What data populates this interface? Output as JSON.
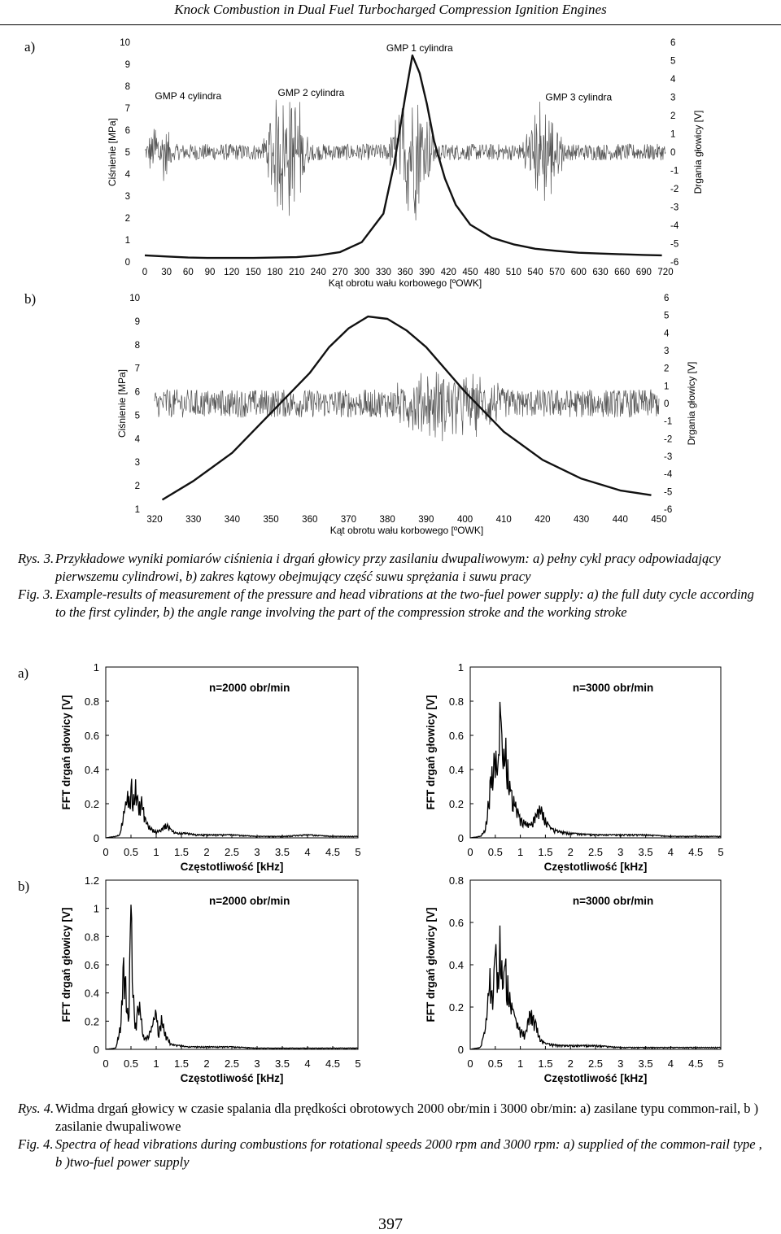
{
  "header": "Knock Combustion in Dual Fuel Turbocharged Compression Ignition Engines",
  "panel_labels": {
    "a": "a)",
    "b": "b)"
  },
  "fig3": {
    "caption_pl_label": "Rys. 3.",
    "caption_pl": "Przykładowe wyniki pomiarów ciśnienia i drgań głowicy przy zasilaniu dwupaliwowym: a) pełny cykl pracy odpowiadający pierwszemu cylindrowi, b) zakres kątowy obejmujący część suwu sprężania i suwu pracy",
    "caption_en_label": "Fig. 3.",
    "caption_en": "Example-results of measurement of the pressure and head vibrations at the two-fuel power supply: a) the full duty cycle according to the first cylinder, b) the angle range involving the part of the compression stroke and the working stroke"
  },
  "fig4": {
    "caption_pl_label": "Rys. 4.",
    "caption_pl": "Widma drgań głowicy w czasie spalania dla prędkości obrotowych 2000 obr/min i 3000 obr/min: a) zasilane typu common-rail, b ) zasilanie dwupaliwowe",
    "caption_en_label": "Fig. 4.",
    "caption_en": "Spectra of head vibrations during combustions for rotational speeds 2000 rpm and 3000 rpm: a) supplied of the common-rail type , b )two-fuel power supply"
  },
  "page_number": "397",
  "chart_data": [
    {
      "id": "fig3a",
      "type": "line",
      "xlabel": "Kąt obrotu wału korbowego [ºOWK]",
      "ylabel": "Ciśnienie [MPa]",
      "y2label": "Drgania głowicy [V]",
      "xlim": [
        0,
        720
      ],
      "ylim": [
        0,
        10
      ],
      "y2lim": [
        -6,
        6
      ],
      "x_ticks": [
        0,
        30,
        60,
        90,
        120,
        150,
        180,
        210,
        240,
        270,
        300,
        330,
        360,
        390,
        420,
        450,
        480,
        510,
        540,
        570,
        600,
        630,
        660,
        690,
        720
      ],
      "y_ticks": [
        0,
        1,
        2,
        3,
        4,
        5,
        6,
        7,
        8,
        9,
        10
      ],
      "y2_ticks": [
        6,
        5,
        4,
        3,
        2,
        1,
        0,
        -1,
        -2,
        -3,
        -4,
        -5,
        -6
      ],
      "annotations": [
        {
          "text": "GMP 1 cylindra",
          "x": 380,
          "y": 9.6
        },
        {
          "text": "GMP 4 cylindra",
          "x": 60,
          "y": 7.4
        },
        {
          "text": "GMP 2 cylindra",
          "x": 230,
          "y": 7.55
        },
        {
          "text": "GMP 3 cylindra",
          "x": 600,
          "y": 7.35
        }
      ],
      "series": [
        {
          "role": "pressure",
          "x": [
            0,
            30,
            60,
            90,
            120,
            150,
            180,
            210,
            240,
            270,
            300,
            330,
            345,
            360,
            370,
            380,
            390,
            400,
            415,
            430,
            450,
            480,
            510,
            540,
            570,
            600,
            630,
            660,
            690,
            715
          ],
          "values": [
            0.3,
            0.25,
            0.2,
            0.18,
            0.18,
            0.18,
            0.2,
            0.22,
            0.3,
            0.45,
            0.9,
            2.2,
            4.5,
            7.5,
            9.4,
            8.6,
            7.2,
            5.5,
            3.8,
            2.6,
            1.7,
            1.1,
            0.8,
            0.6,
            0.5,
            0.42,
            0.38,
            0.35,
            0.32,
            0.3
          ]
        },
        {
          "role": "vibration",
          "bursts": [
            {
              "center": 20,
              "width": 40,
              "amp": 2.2
            },
            {
              "center": 195,
              "width": 70,
              "amp": 4.5
            },
            {
              "center": 370,
              "width": 70,
              "amp": 4.2
            },
            {
              "center": 550,
              "width": 70,
              "amp": 3.2
            }
          ],
          "baseline_amp": 0.45
        }
      ]
    },
    {
      "id": "fig3b",
      "type": "line",
      "xlabel": "Kąt obrotu wału korbowego [ºOWK]",
      "ylabel": "Ciśnienie [MPa]",
      "y2label": "Drgania głowicy [V]",
      "xlim": [
        320,
        450
      ],
      "ylim": [
        1,
        10
      ],
      "y2lim": [
        -6,
        6
      ],
      "x_ticks": [
        320,
        330,
        340,
        350,
        360,
        370,
        380,
        390,
        400,
        410,
        420,
        430,
        440,
        450
      ],
      "y_ticks": [
        1,
        2,
        3,
        4,
        5,
        6,
        7,
        8,
        9,
        10
      ],
      "y2_ticks": [
        6,
        5,
        4,
        3,
        2,
        1,
        0,
        -1,
        -2,
        -3,
        -4,
        -5,
        -6
      ],
      "series": [
        {
          "role": "pressure",
          "x": [
            322,
            330,
            340,
            350,
            360,
            365,
            370,
            375,
            380,
            385,
            390,
            400,
            410,
            420,
            430,
            440,
            448
          ],
          "values": [
            1.4,
            2.2,
            3.4,
            5.1,
            6.8,
            7.9,
            8.7,
            9.2,
            9.1,
            8.6,
            7.9,
            6.0,
            4.3,
            3.1,
            2.3,
            1.8,
            1.6
          ]
        },
        {
          "role": "vibration",
          "bursts": [
            {
              "center": 330,
              "width": 15,
              "amp": 1.0
            },
            {
              "center": 395,
              "width": 40,
              "amp": 2.3
            }
          ],
          "baseline_amp": 0.8
        }
      ]
    },
    {
      "id": "fig4a-2000",
      "type": "line",
      "annotation": "n=2000 obr/min",
      "xlabel": "Częstotliwość [kHz]",
      "ylabel": "FFT drgań głowicy [V]",
      "xlim": [
        0,
        5
      ],
      "ylim": [
        0,
        1
      ],
      "x_ticks": [
        0,
        0.5,
        1,
        1.5,
        2,
        2.5,
        3,
        3.5,
        4,
        4.5,
        5
      ],
      "y_ticks": [
        0,
        0.2,
        0.4,
        0.6,
        0.8,
        1
      ],
      "series": [
        {
          "x": [
            0,
            0.2,
            0.28,
            0.35,
            0.4,
            0.45,
            0.48,
            0.5,
            0.55,
            0.6,
            0.65,
            0.7,
            0.8,
            0.9,
            1.0,
            1.1,
            1.2,
            1.25,
            1.3,
            1.4,
            1.6,
            1.8,
            2.0,
            2.5,
            3.0,
            3.5,
            4.0,
            4.5,
            4.95
          ],
          "values": [
            0.0,
            0.01,
            0.02,
            0.15,
            0.22,
            0.3,
            0.15,
            0.38,
            0.25,
            0.36,
            0.18,
            0.26,
            0.1,
            0.06,
            0.04,
            0.05,
            0.09,
            0.07,
            0.05,
            0.03,
            0.03,
            0.02,
            0.02,
            0.02,
            0.01,
            0.01,
            0.02,
            0.01,
            0.01
          ]
        }
      ]
    },
    {
      "id": "fig4a-3000",
      "type": "line",
      "annotation": "n=3000 obr/min",
      "xlabel": "Częstotliwość [kHz]",
      "ylabel": "FFT drgań głowicy [V]",
      "xlim": [
        0,
        5
      ],
      "ylim": [
        0,
        1
      ],
      "x_ticks": [
        0,
        0.5,
        1,
        1.5,
        2,
        2.5,
        3,
        3.5,
        4,
        4.5,
        5
      ],
      "y_ticks": [
        0,
        0.2,
        0.4,
        0.6,
        0.8,
        1
      ],
      "series": [
        {
          "x": [
            0,
            0.2,
            0.3,
            0.4,
            0.5,
            0.55,
            0.6,
            0.65,
            0.7,
            0.8,
            0.9,
            1.0,
            1.1,
            1.2,
            1.3,
            1.4,
            1.5,
            1.6,
            1.8,
            2.0,
            2.5,
            3.0,
            3.5,
            4.0,
            4.5,
            4.95
          ],
          "values": [
            0.0,
            0.01,
            0.05,
            0.35,
            0.55,
            0.4,
            0.87,
            0.45,
            0.62,
            0.3,
            0.22,
            0.12,
            0.1,
            0.08,
            0.14,
            0.2,
            0.12,
            0.06,
            0.04,
            0.03,
            0.02,
            0.02,
            0.02,
            0.01,
            0.01,
            0.01
          ]
        }
      ]
    },
    {
      "id": "fig4b-2000",
      "type": "line",
      "annotation": "n=2000 obr/min",
      "xlabel": "Częstotliwość [kHz]",
      "ylabel": "FFT drgań głowicy [V]",
      "xlim": [
        0,
        5
      ],
      "ylim": [
        0,
        1.2
      ],
      "x_ticks": [
        0,
        0.5,
        1,
        1.5,
        2,
        2.5,
        3,
        3.5,
        4,
        4.5,
        5
      ],
      "y_ticks": [
        0,
        0.2,
        0.4,
        0.6,
        0.8,
        1,
        1.2
      ],
      "series": [
        {
          "x": [
            0,
            0.2,
            0.3,
            0.35,
            0.4,
            0.45,
            0.5,
            0.55,
            0.6,
            0.65,
            0.7,
            0.75,
            0.8,
            0.9,
            1.0,
            1.05,
            1.1,
            1.2,
            1.3,
            1.4,
            1.5,
            1.6,
            2.0,
            2.5,
            3.0,
            3.5,
            4.0,
            4.5,
            4.95
          ],
          "values": [
            0.0,
            0.01,
            0.2,
            0.67,
            0.5,
            0.2,
            1.12,
            0.4,
            0.15,
            0.4,
            0.25,
            0.1,
            0.08,
            0.15,
            0.3,
            0.12,
            0.25,
            0.1,
            0.04,
            0.03,
            0.03,
            0.02,
            0.02,
            0.02,
            0.01,
            0.01,
            0.01,
            0.01,
            0.01
          ]
        }
      ]
    },
    {
      "id": "fig4b-3000",
      "type": "line",
      "annotation": "n=3000 obr/min",
      "xlabel": "Częstotliwość [kHz]",
      "ylabel": "FFT drgań głowicy [V]",
      "xlim": [
        0,
        5
      ],
      "ylim": [
        0,
        0.8
      ],
      "x_ticks": [
        0,
        0.5,
        1,
        1.5,
        2,
        2.5,
        3,
        3.5,
        4,
        4.5,
        5
      ],
      "y_ticks": [
        0,
        0.2,
        0.4,
        0.6,
        0.8
      ],
      "series": [
        {
          "x": [
            0,
            0.2,
            0.3,
            0.4,
            0.45,
            0.5,
            0.55,
            0.6,
            0.65,
            0.7,
            0.8,
            0.9,
            1.0,
            1.1,
            1.2,
            1.3,
            1.4,
            1.5,
            1.8,
            2.0,
            2.5,
            3.0,
            3.5,
            4.0,
            4.5,
            4.95
          ],
          "values": [
            0.0,
            0.01,
            0.1,
            0.4,
            0.22,
            0.55,
            0.35,
            0.63,
            0.3,
            0.45,
            0.25,
            0.15,
            0.1,
            0.08,
            0.2,
            0.14,
            0.05,
            0.03,
            0.02,
            0.02,
            0.02,
            0.01,
            0.01,
            0.01,
            0.01,
            0.01
          ]
        }
      ]
    }
  ]
}
